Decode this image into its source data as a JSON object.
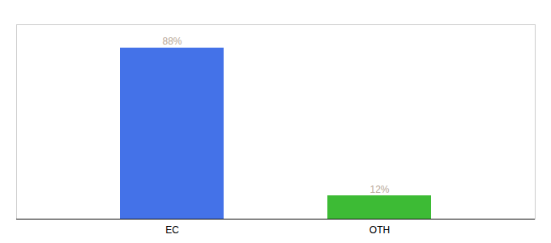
{
  "chart_data": {
    "type": "bar",
    "categories": [
      "EC",
      "OTH"
    ],
    "values": [
      88,
      12
    ],
    "value_labels": [
      "88%",
      "12%"
    ],
    "colors": [
      "#4472e8",
      "#3dbb35"
    ],
    "ylim": [
      0,
      100
    ],
    "grid": false,
    "data_labels": true,
    "tick_labels": "x"
  }
}
